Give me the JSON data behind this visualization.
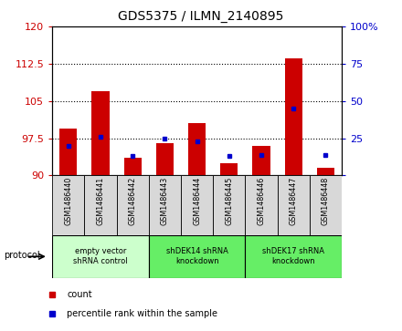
{
  "title": "GDS5375 / ILMN_2140895",
  "samples": [
    "GSM1486440",
    "GSM1486441",
    "GSM1486442",
    "GSM1486443",
    "GSM1486444",
    "GSM1486445",
    "GSM1486446",
    "GSM1486447",
    "GSM1486448"
  ],
  "count_values": [
    99.5,
    107.0,
    93.5,
    96.5,
    100.5,
    92.5,
    96.0,
    113.5,
    91.5
  ],
  "percentile_values": [
    20,
    26,
    13,
    25,
    23,
    13,
    14,
    45,
    14
  ],
  "ylim_left": [
    90,
    120
  ],
  "ylim_right": [
    0,
    100
  ],
  "yticks_left": [
    90,
    97.5,
    105,
    112.5,
    120
  ],
  "yticks_right": [
    0,
    25,
    50,
    75,
    100
  ],
  "bar_color": "#cc0000",
  "dot_color": "#0000cc",
  "bar_bottom": 90,
  "groups": [
    {
      "label": "empty vector\nshRNA control",
      "start": 0,
      "end": 3,
      "color": "#ccffcc"
    },
    {
      "label": "shDEK14 shRNA\nknockdown",
      "start": 3,
      "end": 6,
      "color": "#66ee66"
    },
    {
      "label": "shDEK17 shRNA\nknockdown",
      "start": 6,
      "end": 9,
      "color": "#66ee66"
    }
  ],
  "protocol_label": "protocol",
  "legend_count_label": "count",
  "legend_percentile_label": "percentile rank within the sample",
  "background_color": "#ffffff",
  "plot_bg_color": "#ffffff",
  "tick_color_left": "#cc0000",
  "tick_color_right": "#0000cc",
  "sample_box_color": "#d8d8d8"
}
